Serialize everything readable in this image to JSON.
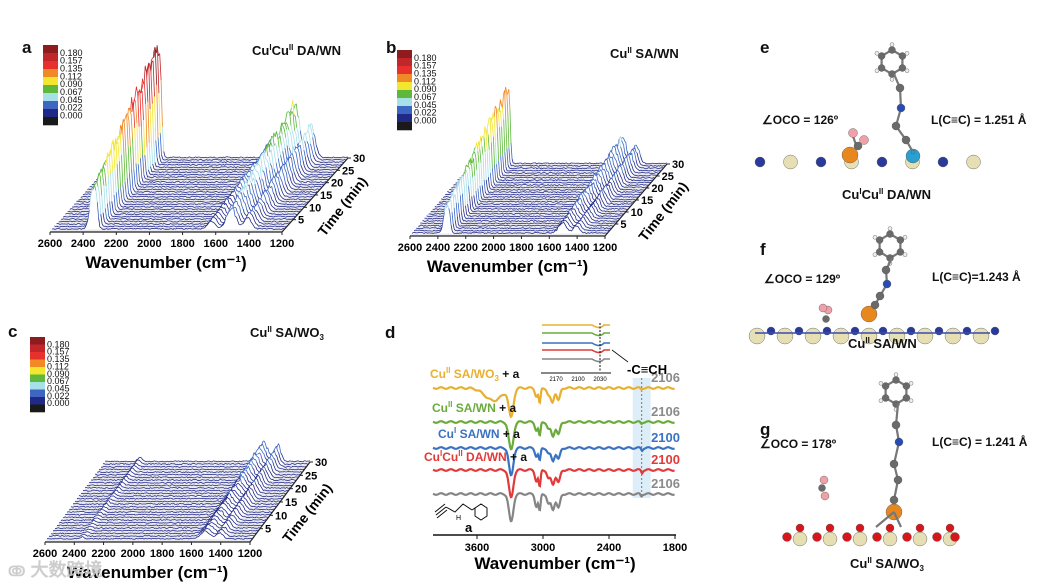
{
  "panels": {
    "a": {
      "letter": "a",
      "title": [
        [
          "Cu",
          ""
        ],
        [
          "I",
          "sup"
        ],
        [
          "Cu",
          ""
        ],
        [
          "II",
          "sup"
        ],
        [
          " DA/WN",
          ""
        ]
      ]
    },
    "b": {
      "letter": "b",
      "title": [
        [
          "Cu",
          ""
        ],
        [
          "II",
          "sup"
        ],
        [
          " SA/WN",
          ""
        ]
      ]
    },
    "c": {
      "letter": "c",
      "title": [
        [
          "Cu",
          ""
        ],
        [
          "II",
          "sup"
        ],
        [
          " SA/WO",
          ""
        ],
        [
          "3",
          "sub"
        ]
      ]
    },
    "d": {
      "letter": "d"
    },
    "e": {
      "letter": "e",
      "angle": "∠OCO = 126º",
      "bond": "L(C≡C) = 1.251 Å",
      "caption": [
        [
          "Cu",
          ""
        ],
        [
          "I",
          "sup"
        ],
        [
          "Cu",
          ""
        ],
        [
          "II",
          "sup"
        ],
        [
          " DA/WN",
          ""
        ]
      ]
    },
    "f": {
      "letter": "f",
      "angle": "∠OCO = 129º",
      "bond": "L(C≡C)=1.243 Å",
      "caption": [
        [
          "Cu",
          ""
        ],
        [
          "II",
          "sup"
        ],
        [
          " SA/WN",
          ""
        ]
      ]
    },
    "g": {
      "letter": "g",
      "angle": "∠OCO = 178º",
      "bond": "L(C≡C) = 1.241 Å",
      "caption": [
        [
          "Cu",
          ""
        ],
        [
          "II",
          "sup"
        ],
        [
          " SA/WO",
          ""
        ],
        [
          "3",
          "sub"
        ]
      ]
    }
  },
  "colorbar": {
    "labels": [
      "0.180",
      "0.157",
      "0.135",
      "0.112",
      "0.090",
      "0.067",
      "0.045",
      "0.022",
      "0.000"
    ],
    "colors": [
      "#8e1b1e",
      "#c0262a",
      "#e8302c",
      "#f08a24",
      "#f2e62e",
      "#5db83c",
      "#a8e0ea",
      "#3d66c2",
      "#202a86",
      "#1a1a1a"
    ]
  },
  "chart_data": [
    {
      "type": "waterfall",
      "panel": "a",
      "xlabel": "Wavenumber (cm⁻¹)",
      "ylabel": "Time (min)",
      "xlim": [
        2600,
        1200
      ],
      "xticks": [
        "2600",
        "2400",
        "2200",
        "2000",
        "1800",
        "1600",
        "1400",
        "1200"
      ],
      "tlim": [
        0,
        30
      ],
      "tticks": [
        "5",
        "10",
        "15",
        "20",
        "25",
        "30"
      ],
      "zlim": [
        0,
        0.18
      ],
      "peaks": [
        {
          "center": 2360,
          "width": 22,
          "amp": 0.18
        },
        {
          "center": 2335,
          "width": 14,
          "amp": 0.15
        },
        {
          "center": 1520,
          "width": 40,
          "amp": 0.1
        },
        {
          "center": 1420,
          "width": 30,
          "amp": 0.06
        },
        {
          "center": 1640,
          "width": 30,
          "amp": 0.04
        }
      ]
    },
    {
      "type": "waterfall",
      "panel": "b",
      "xlabel": "Wavenumber (cm⁻¹)",
      "ylabel": "Time (min)",
      "xlim": [
        2600,
        1200
      ],
      "xticks": [
        "2600",
        "2400",
        "2200",
        "2000",
        "1800",
        "1600",
        "1400",
        "1200"
      ],
      "tlim": [
        0,
        30
      ],
      "tticks": [
        "5",
        "10",
        "15",
        "20",
        "25",
        "30"
      ],
      "zlim": [
        0,
        0.18
      ],
      "peaks": [
        {
          "center": 2360,
          "width": 22,
          "amp": 0.12
        },
        {
          "center": 2335,
          "width": 14,
          "amp": 0.1
        },
        {
          "center": 1520,
          "width": 40,
          "amp": 0.05
        },
        {
          "center": 1420,
          "width": 30,
          "amp": 0.035
        }
      ]
    },
    {
      "type": "waterfall",
      "panel": "c",
      "xlabel": "Wavenumber (cm⁻¹)",
      "ylabel": "Time (min)",
      "xlim": [
        2600,
        1200
      ],
      "xticks": [
        "2600",
        "2400",
        "2200",
        "2000",
        "1800",
        "1600",
        "1400",
        "1200"
      ],
      "tlim": [
        0,
        30
      ],
      "tticks": [
        "5",
        "10",
        "15",
        "20",
        "25",
        "30"
      ],
      "zlim": [
        0,
        0.18
      ],
      "peaks": [
        {
          "center": 1520,
          "width": 45,
          "amp": 0.035
        },
        {
          "center": 1420,
          "width": 30,
          "amp": 0.03
        },
        {
          "center": 2360,
          "width": 20,
          "amp": 0.008
        }
      ]
    },
    {
      "type": "line",
      "panel": "d",
      "xlabel": "Wavenumber (cm⁻¹)",
      "xlim": [
        4000,
        1800
      ],
      "xticks": [
        "3600",
        "3000",
        "2400",
        "1800"
      ],
      "highlight": {
        "label": "-C≡CH",
        "center": 2103
      },
      "series": [
        {
          "name": [
            [
              "Cu",
              ""
            ],
            [
              "II",
              "sup"
            ],
            [
              " SA/WO",
              ""
            ],
            [
              "3",
              "sub"
            ],
            [
              " + a",
              ""
            ]
          ],
          "peak_label": "2106",
          "color": "#e8b030",
          "peak_color": "#8a8a8a",
          "dips": [
            [
              3450,
              0.45,
              110
            ],
            [
              3290,
              1.0,
              30
            ],
            [
              3060,
              0.3,
              18
            ],
            [
              3030,
              0.55,
              12
            ],
            [
              2950,
              0.25,
              20
            ],
            [
              2915,
              0.5,
              22
            ],
            [
              2860,
              0.45,
              22
            ],
            [
              2106,
              0.05,
              10
            ]
          ]
        },
        {
          "name": [
            [
              "Cu",
              ""
            ],
            [
              "II",
              "sup"
            ],
            [
              " SA/WN",
              ""
            ],
            [
              " + a",
              ""
            ]
          ],
          "peak_label": "2106",
          "color": "#6aab3c",
          "peak_color": "#8a8a8a",
          "dips": [
            [
              3290,
              1.0,
              30
            ],
            [
              3060,
              0.3,
              18
            ],
            [
              3030,
              0.5,
              12
            ],
            [
              2950,
              0.25,
              20
            ],
            [
              2910,
              0.5,
              22
            ],
            [
              2860,
              0.45,
              22
            ],
            [
              2106,
              0.06,
              10
            ]
          ]
        },
        {
          "name": [
            [
              "Cu",
              ""
            ],
            [
              "I",
              "sup"
            ],
            [
              " SA/WN",
              ""
            ],
            [
              " + a",
              ""
            ]
          ],
          "peak_label": "2100",
          "color": "#3a72c2",
          "peak_color": "#3a72c2",
          "dips": [
            [
              3290,
              1.0,
              28
            ],
            [
              3060,
              0.3,
              18
            ],
            [
              3030,
              0.45,
              12
            ],
            [
              2950,
              0.2,
              20
            ],
            [
              2910,
              0.45,
              22
            ],
            [
              2860,
              0.4,
              22
            ],
            [
              2100,
              0.08,
              10
            ]
          ]
        },
        {
          "name": [
            [
              "Cu",
              ""
            ],
            [
              "I",
              "sup"
            ],
            [
              "Cu",
              ""
            ],
            [
              "II",
              "sup"
            ],
            [
              " DA/WN",
              ""
            ],
            [
              " + a",
              ""
            ]
          ],
          "peak_label": "2100",
          "color": "#e03a3a",
          "peak_color": "#e03a3a",
          "dips": [
            [
              3290,
              1.0,
              28
            ],
            [
              3060,
              0.4,
              18
            ],
            [
              3030,
              0.6,
              12
            ],
            [
              2950,
              0.3,
              20
            ],
            [
              2910,
              0.5,
              22
            ],
            [
              2860,
              0.45,
              22
            ],
            [
              2100,
              0.1,
              10
            ]
          ]
        },
        {
          "name": [
            [
              "a",
              ""
            ]
          ],
          "peak_label": "2106",
          "color": "#858585",
          "peak_color": "#8a8a8a",
          "dips": [
            [
              3290,
              1.0,
              28
            ],
            [
              3060,
              0.45,
              18
            ],
            [
              3030,
              0.6,
              12
            ],
            [
              2950,
              0.35,
              20
            ],
            [
              2910,
              0.55,
              22
            ],
            [
              2860,
              0.5,
              22
            ],
            [
              2106,
              0.08,
              10
            ]
          ]
        }
      ],
      "inset": {
        "xticks": [
          "2170",
          "2100",
          "2030"
        ]
      }
    }
  ],
  "watermark": "大数跨境"
}
